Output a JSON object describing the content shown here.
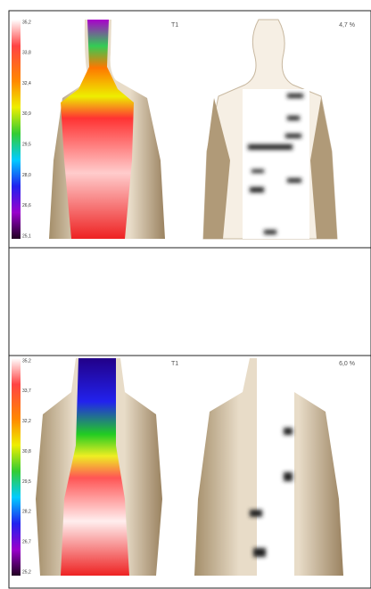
{
  "panels": [
    {
      "scale_labels": [
        "35,2",
        "33,8",
        "32,4",
        "30,9",
        "29,5",
        "28,0",
        "26,6",
        "25,1"
      ],
      "label": "T1",
      "percent": "4,7 %"
    },
    {
      "scale_labels": [
        "35,2",
        "33,7",
        "32,2",
        "30,8",
        "29,5",
        "28,2",
        "26,7",
        "25,2"
      ],
      "label": "T1",
      "percent": "6,0 %"
    }
  ]
}
